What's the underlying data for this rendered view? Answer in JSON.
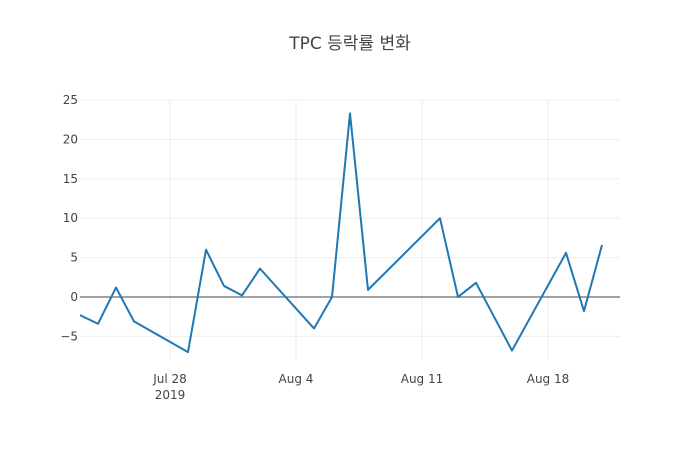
{
  "chart_data": {
    "type": "line",
    "title": "TPC 등락률 변화",
    "xlabel": "",
    "ylabel": "",
    "x_range": [
      "2019-07-23",
      "2019-08-22"
    ],
    "ylim": [
      -8,
      25
    ],
    "y_ticks": [
      {
        "value": -5,
        "label": "−5"
      },
      {
        "value": 0,
        "label": "0"
      },
      {
        "value": 5,
        "label": "5"
      },
      {
        "value": 10,
        "label": "10"
      },
      {
        "value": 15,
        "label": "15"
      },
      {
        "value": 20,
        "label": "20"
      },
      {
        "value": 25,
        "label": "25"
      }
    ],
    "x_ticks": [
      {
        "date": "2019-07-28",
        "label": "Jul 28",
        "sublabel": "2019"
      },
      {
        "date": "2019-08-04",
        "label": "Aug 4",
        "sublabel": ""
      },
      {
        "date": "2019-08-11",
        "label": "Aug 11",
        "sublabel": ""
      },
      {
        "date": "2019-08-18",
        "label": "Aug 18",
        "sublabel": ""
      }
    ],
    "grid": true,
    "zero_line": true,
    "legend": "none",
    "series": [
      {
        "color": "#1f77b4",
        "x": [
          "2019-07-23",
          "2019-07-24",
          "2019-07-25",
          "2019-07-26",
          "2019-07-29",
          "2019-07-30",
          "2019-07-31",
          "2019-08-01",
          "2019-08-02",
          "2019-08-05",
          "2019-08-06",
          "2019-08-07",
          "2019-08-08",
          "2019-08-12",
          "2019-08-13",
          "2019-08-14",
          "2019-08-16",
          "2019-08-19",
          "2019-08-20",
          "2019-08-21"
        ],
        "y": [
          -2.3,
          -3.4,
          1.2,
          -3.1,
          -7.0,
          6.0,
          1.4,
          0.2,
          3.6,
          -4.0,
          0.0,
          23.3,
          0.9,
          10.0,
          0.0,
          1.8,
          -6.8,
          5.6,
          -1.8,
          6.6
        ]
      }
    ]
  }
}
